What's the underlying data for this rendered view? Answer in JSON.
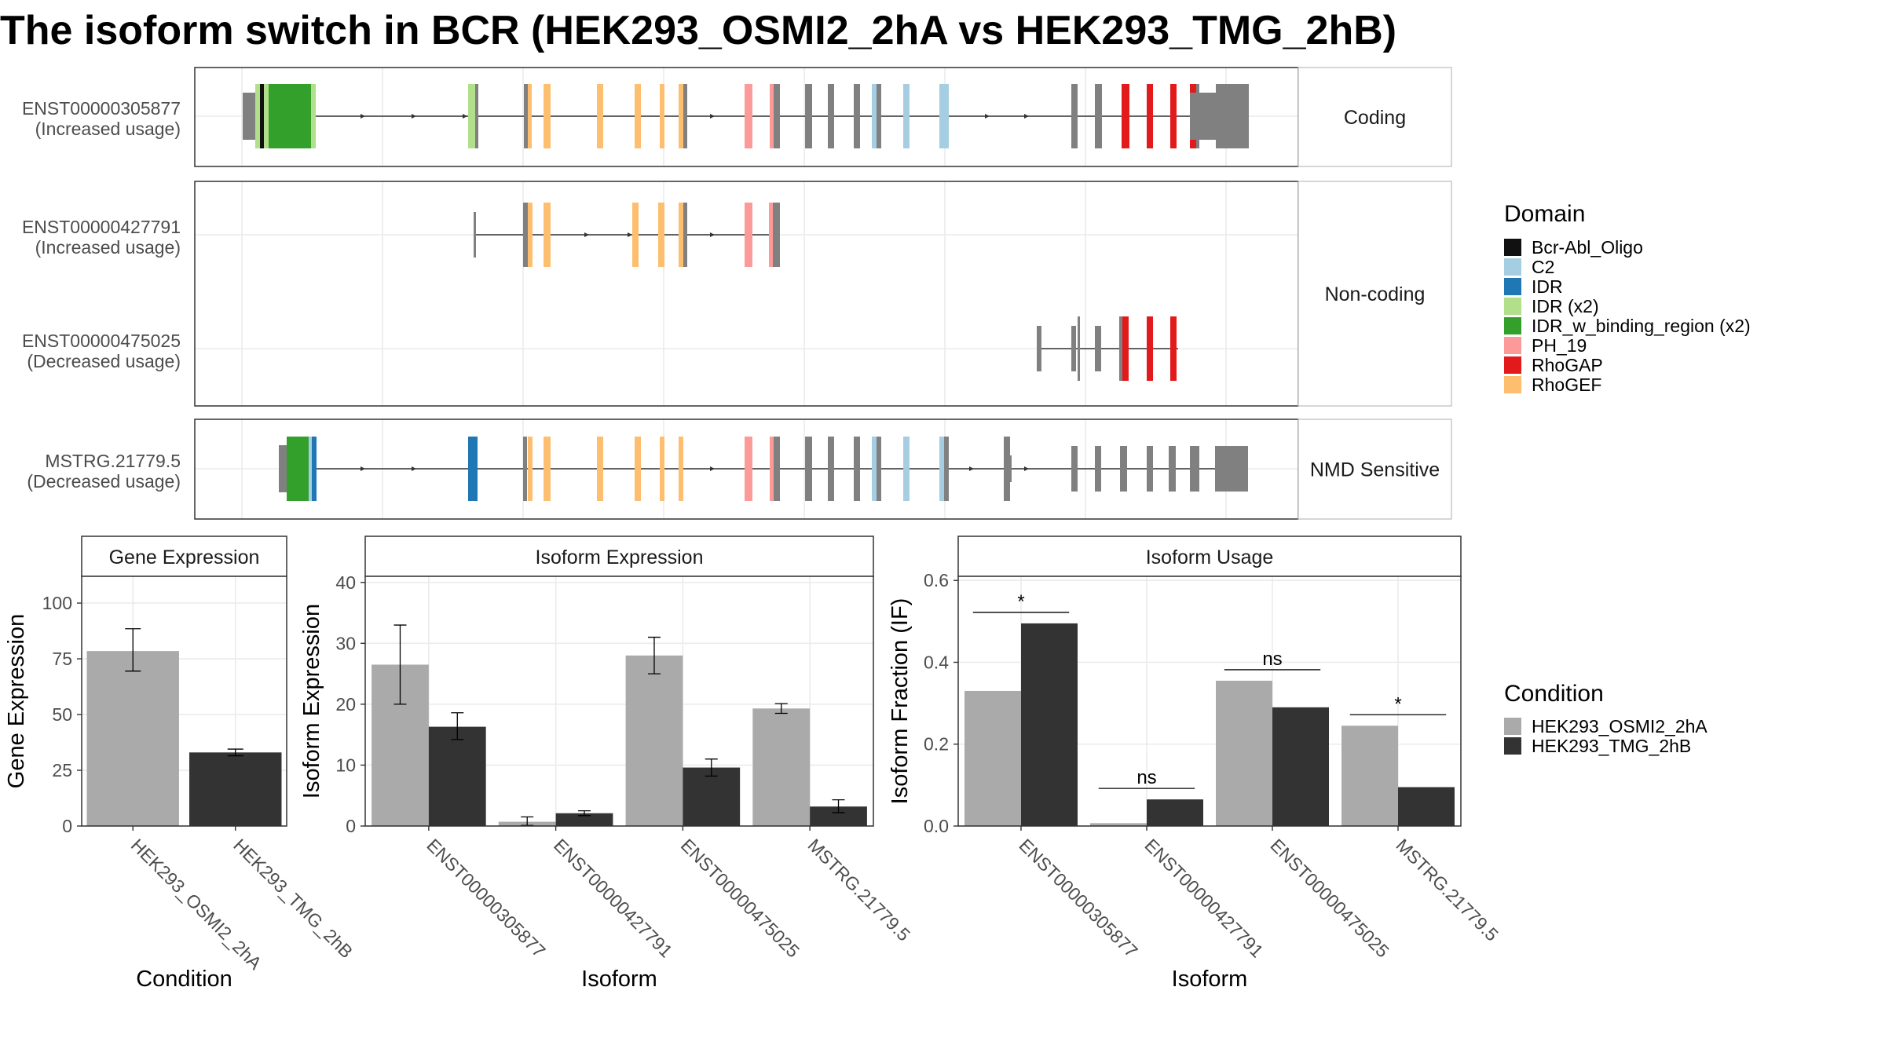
{
  "title": "The isoform switch in BCR (HEK293_OSMI2_2hA vs HEK293_TMG_2hB)",
  "colors": {
    "Bcr-Abl_Oligo": "#111111",
    "C2": "#A6CEE3",
    "IDR": "#1F78B4",
    "IDR (x2)": "#B2DF8A",
    "IDR_w_binding_region (x2)": "#33A02C",
    "PH_19": "#FB9A99",
    "RhoGAP": "#E31A1C",
    "RhoGEF": "#FDBF6F",
    "exon": "#808080",
    "cond_a": "#AAAAAA",
    "cond_b": "#333333"
  },
  "structure_panel": {
    "facets": [
      {
        "label": "Coding",
        "rows": [
          {
            "name": "ENST00000305877",
            "sub": "(Increased usage)"
          }
        ]
      },
      {
        "label": "Non-coding",
        "rows": [
          {
            "name": "ENST00000427791",
            "sub": "(Increased usage)"
          },
          {
            "name": "ENST00000475025",
            "sub": "(Decreased usage)"
          }
        ]
      },
      {
        "label": "NMD Sensitive",
        "rows": [
          {
            "name": "MSTRG.21779.5",
            "sub": "(Decreased usage)"
          }
        ]
      }
    ]
  },
  "legend_domain": {
    "title": "Domain",
    "items": [
      "Bcr-Abl_Oligo",
      "C2",
      "IDR",
      "IDR (x2)",
      "IDR_w_binding_region (x2)",
      "PH_19",
      "RhoGAP",
      "RhoGEF"
    ]
  },
  "legend_condition": {
    "title": "Condition",
    "items": [
      "HEK293_OSMI2_2hA",
      "HEK293_TMG_2hB"
    ]
  },
  "chart_data": [
    {
      "type": "bar",
      "title": "Gene Expression",
      "xlabel": "Condition",
      "ylabel": "Gene Expression",
      "categories": [
        "HEK293_OSMI2_2hA",
        "HEK293_TMG_2hB"
      ],
      "values": [
        78.5,
        33
      ],
      "errors": [
        [
          69.5,
          88.5
        ],
        [
          31.5,
          34.5
        ]
      ],
      "ylim": [
        0,
        112
      ],
      "yticks": [
        0,
        25,
        50,
        75,
        100
      ]
    },
    {
      "type": "bar",
      "title": "Isoform Expression",
      "xlabel": "Isoform",
      "ylabel": "Isoform Expression",
      "categories": [
        "ENST00000305877",
        "ENST00000427791",
        "ENST00000475025",
        "MSTRG.21779.5"
      ],
      "series": [
        {
          "name": "HEK293_OSMI2_2hA",
          "values": [
            26.5,
            0.7,
            28.0,
            19.3
          ],
          "errors": [
            [
              20,
              33
            ],
            [
              0.1,
              1.5
            ],
            [
              25,
              31
            ],
            [
              18.5,
              20.1
            ]
          ]
        },
        {
          "name": "HEK293_TMG_2hB",
          "values": [
            16.3,
            2.1,
            9.6,
            3.2
          ],
          "errors": [
            [
              14.2,
              18.6
            ],
            [
              1.7,
              2.5
            ],
            [
              8.2,
              11
            ],
            [
              2.2,
              4.3
            ]
          ]
        }
      ],
      "ylim": [
        0,
        41
      ],
      "yticks": [
        0,
        10,
        20,
        30,
        40
      ]
    },
    {
      "type": "bar",
      "title": "Isoform Usage",
      "xlabel": "Isoform",
      "ylabel": "Isoform Fraction (IF)",
      "categories": [
        "ENST00000305877",
        "ENST00000427791",
        "ENST00000475025",
        "MSTRG.21779.5"
      ],
      "series": [
        {
          "name": "HEK293_OSMI2_2hA",
          "values": [
            0.33,
            0.007,
            0.355,
            0.245
          ]
        },
        {
          "name": "HEK293_TMG_2hB",
          "values": [
            0.495,
            0.065,
            0.29,
            0.095
          ]
        }
      ],
      "significance": [
        "*",
        "ns",
        "ns",
        "*"
      ],
      "ylim": [
        0,
        0.61
      ],
      "yticks": [
        "0.0",
        "0.2",
        "0.4",
        "0.6"
      ]
    }
  ]
}
